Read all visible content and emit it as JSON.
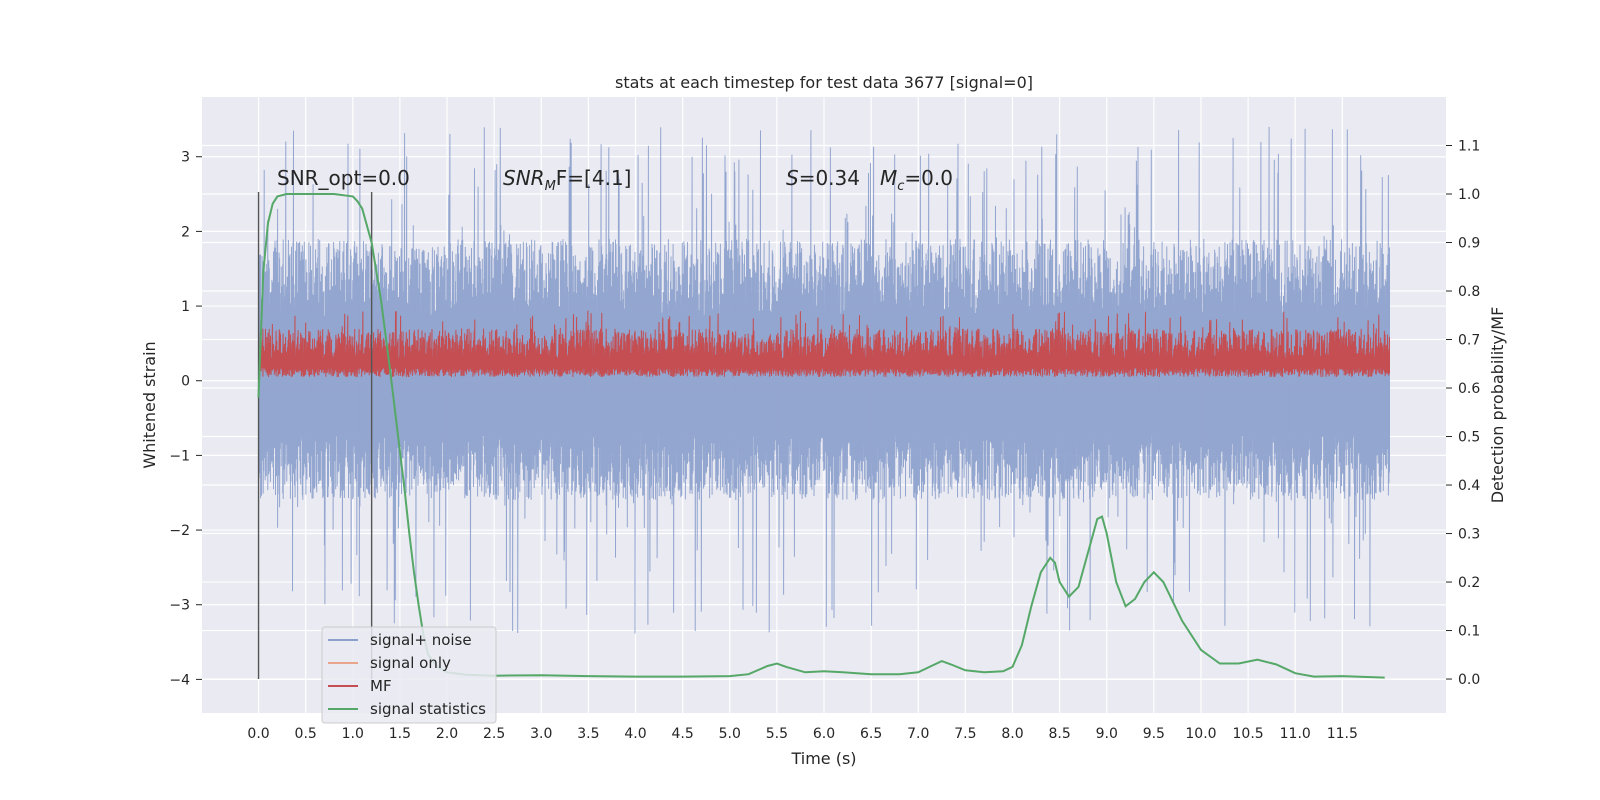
{
  "chart_data": {
    "type": "line",
    "title": "stats at each timestep for test data 3677 [signal=0]",
    "xlabel": "Time (s)",
    "ylabel": "Whitened strain",
    "y2label": "Detection probability/MF",
    "xlim": [
      -0.6,
      12.6
    ],
    "ylim": [
      -4.45,
      3.8
    ],
    "y2lim": [
      -0.07,
      1.2
    ],
    "x_ticks": [
      0.0,
      0.5,
      1.0,
      1.5,
      2.0,
      2.5,
      3.0,
      3.5,
      4.0,
      4.5,
      5.0,
      5.5,
      6.0,
      6.5,
      7.0,
      7.5,
      8.0,
      8.5,
      9.0,
      9.5,
      10.0,
      10.5,
      11.0,
      11.5
    ],
    "x_tick_labels": [
      "0.0",
      "0.5",
      "1.0",
      "1.5",
      "2.0",
      "2.5",
      "3.0",
      "3.5",
      "4.0",
      "4.5",
      "5.0",
      "5.5",
      "6.0",
      "6.5",
      "7.0",
      "7.5",
      "8.0",
      "8.5",
      "9.0",
      "9.5",
      "10.0",
      "10.5",
      "11.0",
      "11.5"
    ],
    "y_ticks": [
      -4,
      -3,
      -2,
      -1,
      0,
      1,
      2,
      3
    ],
    "y_tick_labels": [
      "−4",
      "−3",
      "−2",
      "−1",
      "0",
      "1",
      "2",
      "3"
    ],
    "y2_ticks": [
      0.0,
      0.1,
      0.2,
      0.3,
      0.4,
      0.5,
      0.6,
      0.7,
      0.8,
      0.9,
      1.0,
      1.1
    ],
    "y2_tick_labels": [
      "0.0",
      "0.1",
      "0.2",
      "0.3",
      "0.4",
      "0.5",
      "0.6",
      "0.7",
      "0.8",
      "0.9",
      "1.0",
      "1.1"
    ],
    "grid": true,
    "legend_position": "lower-left",
    "legend": [
      {
        "name": "signal+ noise",
        "color": "#8ba0cc"
      },
      {
        "name": "signal only",
        "color": "#e8a58c"
      },
      {
        "name": "MF",
        "color": "#c44e52"
      },
      {
        "name": "signal statistics",
        "color": "#55a868"
      }
    ],
    "annotations": {
      "snr_opt": "SNR_opt=0.0",
      "snr_mf_base": "SNR",
      "snr_mf_sub": "M",
      "snr_mf_rest": "F=[4.1]",
      "s_symbol": "S",
      "s_value": "=0.34",
      "mc_symbol": "M",
      "mc_sub": "c",
      "mc_value": "=0.0"
    },
    "markers": [
      0.0,
      1.2
    ],
    "series": [
      {
        "name": "signal+ noise",
        "axis": "left",
        "style": "dense-noise",
        "x_range": [
          0.0,
          12.0
        ],
        "center": 0.0,
        "typical_envelope": [
          -1.6,
          1.9
        ],
        "peak_range": [
          -3.4,
          3.4
        ]
      },
      {
        "name": "MF",
        "axis": "left",
        "style": "dense-noise",
        "x_range": [
          0.0,
          12.0
        ],
        "baseline": 0.05,
        "typical_top": 0.7,
        "peak_top": 0.95
      },
      {
        "name": "signal statistics",
        "axis": "right",
        "x": [
          0.0,
          0.05,
          0.1,
          0.15,
          0.2,
          0.3,
          0.5,
          0.8,
          1.0,
          1.05,
          1.1,
          1.2,
          1.3,
          1.4,
          1.5,
          1.55,
          1.6,
          1.65,
          1.7,
          1.75,
          1.8,
          1.9,
          2.0,
          2.2,
          2.5,
          3.0,
          3.5,
          4.0,
          4.5,
          5.0,
          5.2,
          5.4,
          5.5,
          5.6,
          5.8,
          6.0,
          6.2,
          6.5,
          6.8,
          7.0,
          7.15,
          7.25,
          7.35,
          7.5,
          7.7,
          7.9,
          8.0,
          8.1,
          8.2,
          8.3,
          8.4,
          8.45,
          8.5,
          8.6,
          8.7,
          8.8,
          8.9,
          8.95,
          9.0,
          9.1,
          9.2,
          9.3,
          9.4,
          9.5,
          9.6,
          9.8,
          10.0,
          10.2,
          10.4,
          10.6,
          10.8,
          11.0,
          11.2,
          11.5,
          11.8,
          11.95
        ],
        "values": [
          0.58,
          0.84,
          0.94,
          0.98,
          0.995,
          1.0,
          1.0,
          1.0,
          0.995,
          0.985,
          0.97,
          0.9,
          0.78,
          0.63,
          0.47,
          0.39,
          0.3,
          0.22,
          0.15,
          0.09,
          0.05,
          0.025,
          0.014,
          0.009,
          0.007,
          0.008,
          0.006,
          0.005,
          0.005,
          0.006,
          0.01,
          0.027,
          0.032,
          0.025,
          0.014,
          0.016,
          0.014,
          0.01,
          0.01,
          0.014,
          0.028,
          0.037,
          0.03,
          0.018,
          0.014,
          0.016,
          0.025,
          0.07,
          0.15,
          0.22,
          0.25,
          0.24,
          0.2,
          0.17,
          0.19,
          0.26,
          0.33,
          0.335,
          0.3,
          0.2,
          0.15,
          0.165,
          0.2,
          0.22,
          0.2,
          0.12,
          0.06,
          0.032,
          0.032,
          0.04,
          0.03,
          0.012,
          0.005,
          0.006,
          0.004,
          0.003
        ]
      }
    ]
  }
}
